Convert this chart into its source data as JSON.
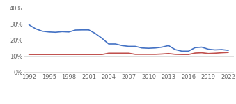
{
  "school_years": [
    1992,
    1993,
    1994,
    1995,
    1996,
    1997,
    1998,
    1999,
    2000,
    2001,
    2002,
    2003,
    2004,
    2005,
    2006,
    2007,
    2008,
    2009,
    2010,
    2011,
    2012,
    2013,
    2014,
    2015,
    2016,
    2017,
    2018,
    2019,
    2020,
    2021,
    2022
  ],
  "school_values": [
    0.295,
    0.27,
    0.255,
    0.25,
    0.248,
    0.252,
    0.25,
    0.262,
    0.263,
    0.263,
    0.24,
    0.21,
    0.175,
    0.175,
    0.165,
    0.16,
    0.16,
    0.15,
    0.148,
    0.15,
    0.155,
    0.165,
    0.14,
    0.13,
    0.13,
    0.152,
    0.155,
    0.142,
    0.138,
    0.14,
    0.135
  ],
  "state_years": [
    1992,
    1993,
    1994,
    1995,
    1996,
    1997,
    1998,
    1999,
    2000,
    2001,
    2002,
    2003,
    2004,
    2005,
    2006,
    2007,
    2008,
    2009,
    2010,
    2011,
    2012,
    2013,
    2014,
    2015,
    2016,
    2017,
    2018,
    2019,
    2020,
    2021,
    2022
  ],
  "state_values": [
    0.109,
    0.109,
    0.109,
    0.109,
    0.109,
    0.109,
    0.109,
    0.109,
    0.109,
    0.109,
    0.109,
    0.109,
    0.117,
    0.117,
    0.117,
    0.117,
    0.11,
    0.11,
    0.11,
    0.11,
    0.112,
    0.115,
    0.11,
    0.109,
    0.109,
    0.118,
    0.12,
    0.115,
    0.117,
    0.12,
    0.122
  ],
  "school_color": "#4472c4",
  "state_color": "#c0504d",
  "background_color": "#ffffff",
  "grid_color": "#d9d9d9",
  "xticks": [
    1992,
    1995,
    1998,
    2001,
    2004,
    2007,
    2010,
    2013,
    2016,
    2019,
    2022
  ],
  "yticks": [
    0.0,
    0.1,
    0.2,
    0.3,
    0.4
  ],
  "ytick_labels": [
    "0%",
    "10%",
    "20%",
    "30%",
    "40%"
  ],
  "ylim": [
    -0.005,
    0.43
  ],
  "xlim": [
    1991.2,
    2022.8
  ],
  "line_width": 1.2,
  "font_size": 6.0
}
